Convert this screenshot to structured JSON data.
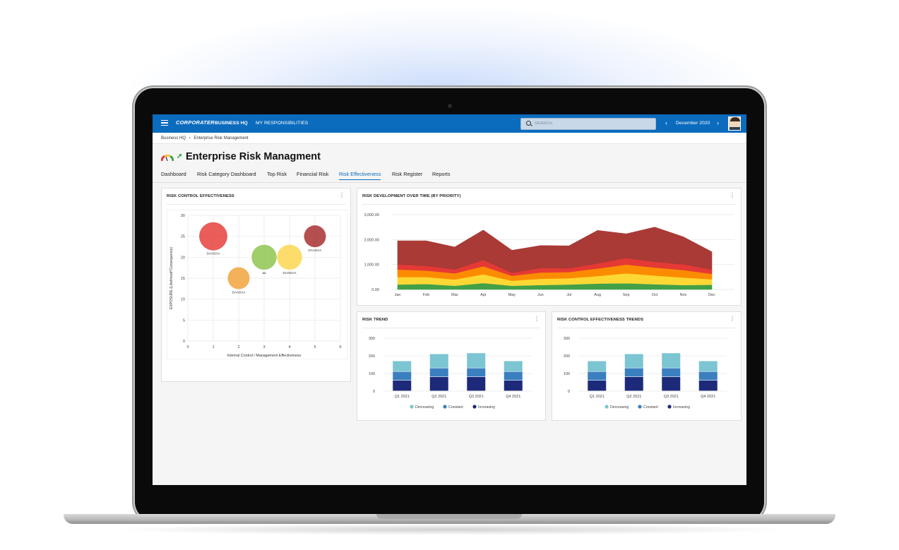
{
  "app": {
    "logo": "CORPORATER",
    "nav": [
      "BUSINESS HQ",
      "MY RESPONSIBILITIES"
    ],
    "search_placeholder": "SEARCH",
    "period": "December 2020",
    "prev_icon": "chevron-left-icon",
    "next_icon": "chevron-right-icon"
  },
  "breadcrumb": [
    "Business HQ",
    "Enterprise Risk Management"
  ],
  "breadcrumb_separator": "›",
  "page_title": "Enterprise Risk Managment",
  "tabs": [
    "Dashboard",
    "Risk Category Dashboard",
    "Top Risk",
    "Financial Risk",
    "Risk Effectiveness",
    "Risk Register",
    "Reports"
  ],
  "active_tab": "Risk Effectiveness",
  "colors": {
    "brand": "#0b6bbd",
    "decreasing": "#7cc5d2",
    "constant": "#3a7fbf",
    "increasing": "#1d2a7a"
  },
  "cards": {
    "bubble_title": "RISK CONTROL EFFECTIVENESS",
    "area_title": "RISK DEVELOPMENT OVER TIME (BY PRIORITY)",
    "trend_title": "RISK TREND",
    "ctrl_trend_title": "RISK CONTROL EFFECTIVENESS TRENDS"
  },
  "chart_data": [
    {
      "type": "scatter",
      "xlabel": "Internal Control / Management Effectiveness",
      "ylabel": "EXPOSURE (Likelihood*Consequence)",
      "xlim": [
        0,
        6
      ],
      "ylim": [
        0,
        30
      ],
      "xticks": [
        0,
        1,
        2,
        3,
        4,
        5,
        6
      ],
      "yticks": [
        0,
        5,
        10,
        15,
        20,
        25,
        30
      ],
      "grid": true,
      "points": [
        {
          "x": 1,
          "y": 25,
          "size": 3.6,
          "color": "#e53935",
          "label": "DAADAA"
        },
        {
          "x": 2,
          "y": 15,
          "size": 2.8,
          "color": "#f0a035",
          "label": "DAADAA"
        },
        {
          "x": 3,
          "y": 20,
          "size": 3.2,
          "color": "#8bc34a",
          "label": "aa"
        },
        {
          "x": 4,
          "y": 20,
          "size": 3.2,
          "color": "#fbd54a",
          "label": "DAADAA"
        },
        {
          "x": 5,
          "y": 25,
          "size": 2.8,
          "color": "#a52a2a",
          "label": "DAADAA"
        }
      ]
    },
    {
      "type": "area",
      "categories": [
        "Jan",
        "Feb",
        "Mar",
        "Apr",
        "May",
        "Jun",
        "Jul",
        "Aug",
        "Sep",
        "Oct",
        "Nov",
        "Dec"
      ],
      "ylim": [
        0,
        3000
      ],
      "yticks": [
        "0.00",
        "1,000.00",
        "2,000.00",
        "3,000.00"
      ],
      "stacked": true,
      "series": [
        {
          "color": "#43a047",
          "values": [
            200,
            220,
            150,
            260,
            150,
            180,
            200,
            240,
            250,
            210,
            180,
            190
          ]
        },
        {
          "color": "#fdd835",
          "values": [
            300,
            280,
            250,
            350,
            200,
            250,
            250,
            300,
            400,
            350,
            300,
            220
          ]
        },
        {
          "color": "#fb8c00",
          "values": [
            300,
            260,
            250,
            320,
            200,
            250,
            250,
            300,
            350,
            320,
            300,
            220
          ]
        },
        {
          "color": "#e53935",
          "values": [
            200,
            190,
            150,
            250,
            120,
            180,
            150,
            200,
            260,
            230,
            230,
            170
          ]
        },
        {
          "color": "#a93a35",
          "values": [
            950,
            1000,
            900,
            1200,
            900,
            900,
            900,
            1330,
            970,
            1390,
            1100,
            710
          ]
        }
      ]
    },
    {
      "type": "bar",
      "stacked": true,
      "categories": [
        "Q1 2021",
        "Q2 2021",
        "Q3 2021",
        "Q4 2021"
      ],
      "ylim": [
        0,
        300
      ],
      "yticks": [
        0,
        100,
        200,
        300
      ],
      "legend": "bottom",
      "series": [
        {
          "name": "Increasing",
          "color": "#1d2a7a",
          "values": [
            60,
            80,
            80,
            60
          ]
        },
        {
          "name": "Constant",
          "color": "#3a7fbf",
          "values": [
            50,
            50,
            50,
            50
          ]
        },
        {
          "name": "Decreasing",
          "color": "#7cc5d2",
          "values": [
            60,
            80,
            85,
            60
          ]
        }
      ]
    },
    {
      "type": "bar",
      "stacked": true,
      "categories": [
        "Q1 2021",
        "Q2 2021",
        "Q3 2021",
        "Q4 2021"
      ],
      "ylim": [
        0,
        300
      ],
      "yticks": [
        0,
        100,
        200,
        300
      ],
      "legend": "bottom",
      "series": [
        {
          "name": "Increasing",
          "color": "#1d2a7a",
          "values": [
            60,
            80,
            80,
            60
          ]
        },
        {
          "name": "Constant",
          "color": "#3a7fbf",
          "values": [
            50,
            50,
            50,
            50
          ]
        },
        {
          "name": "Decreasing",
          "color": "#7cc5d2",
          "values": [
            60,
            80,
            85,
            60
          ]
        }
      ]
    }
  ]
}
